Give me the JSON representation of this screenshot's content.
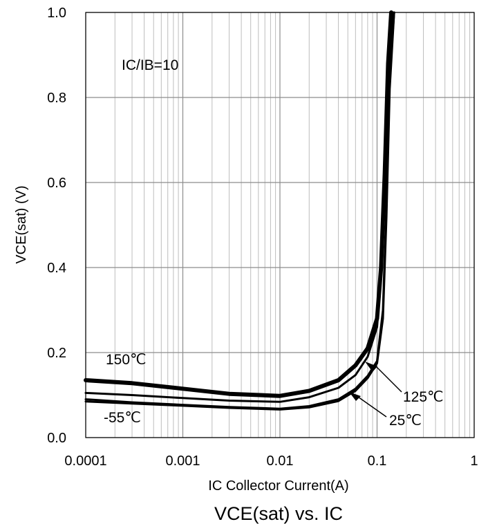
{
  "chart_data": {
    "type": "line",
    "title": "VCE(sat) vs. IC",
    "xlabel": "IC Collector Current(A)",
    "ylabel": "VCE(sat) (V)",
    "x_scale": "log",
    "xlim": [
      0.0001,
      1
    ],
    "ylim": [
      0.0,
      1.0
    ],
    "grid": true,
    "x_ticks": [
      "0.0001",
      "0.001",
      "0.01",
      "0.1",
      "1"
    ],
    "x_tick_values": [
      0.0001,
      0.001,
      0.01,
      0.1,
      1
    ],
    "y_ticks": [
      "0.0",
      "0.2",
      "0.4",
      "0.6",
      "0.8",
      "1.0"
    ],
    "y_tick_values": [
      0.0,
      0.2,
      0.4,
      0.6,
      0.8,
      1.0
    ],
    "annotation": "IC/IB=10",
    "series": [
      {
        "name": "150℃",
        "color": "#000000",
        "x": [
          0.0001,
          0.0003,
          0.001,
          0.003,
          0.01,
          0.02,
          0.04,
          0.06,
          0.08,
          0.1,
          0.11,
          0.12,
          0.13,
          0.14
        ],
        "y": [
          0.135,
          0.128,
          0.115,
          0.103,
          0.098,
          0.11,
          0.135,
          0.17,
          0.21,
          0.28,
          0.4,
          0.62,
          0.88,
          1.0
        ]
      },
      {
        "name": "125℃",
        "color": "#000000",
        "x": [
          0.0001,
          0.0003,
          0.001,
          0.003,
          0.01,
          0.02,
          0.04,
          0.06,
          0.08,
          0.1,
          0.11,
          0.12,
          0.13,
          0.145
        ],
        "y": [
          0.105,
          0.1,
          0.093,
          0.087,
          0.084,
          0.095,
          0.117,
          0.147,
          0.19,
          0.26,
          0.38,
          0.6,
          0.86,
          1.0
        ]
      },
      {
        "name": "25℃",
        "color": "#000000",
        "x": [
          0.0001,
          0.0003,
          0.001,
          0.003,
          0.01,
          0.02,
          0.04,
          0.06,
          0.08,
          0.1,
          0.115,
          0.125,
          0.135,
          0.15
        ],
        "y": [
          0.09,
          0.083,
          0.077,
          0.072,
          0.068,
          0.074,
          0.09,
          0.115,
          0.145,
          0.18,
          0.3,
          0.55,
          0.85,
          1.0
        ]
      },
      {
        "name": "-55℃",
        "color": "#000000",
        "x": [
          0.0001,
          0.0003,
          0.001,
          0.003,
          0.01,
          0.02,
          0.04,
          0.06,
          0.08,
          0.1,
          0.115,
          0.125,
          0.135,
          0.15
        ],
        "y": [
          0.085,
          0.08,
          0.075,
          0.07,
          0.066,
          0.071,
          0.086,
          0.11,
          0.14,
          0.175,
          0.28,
          0.52,
          0.82,
          1.0
        ]
      }
    ],
    "series_labels": [
      "150℃",
      "125℃",
      "25℃",
      "-55℃"
    ]
  }
}
